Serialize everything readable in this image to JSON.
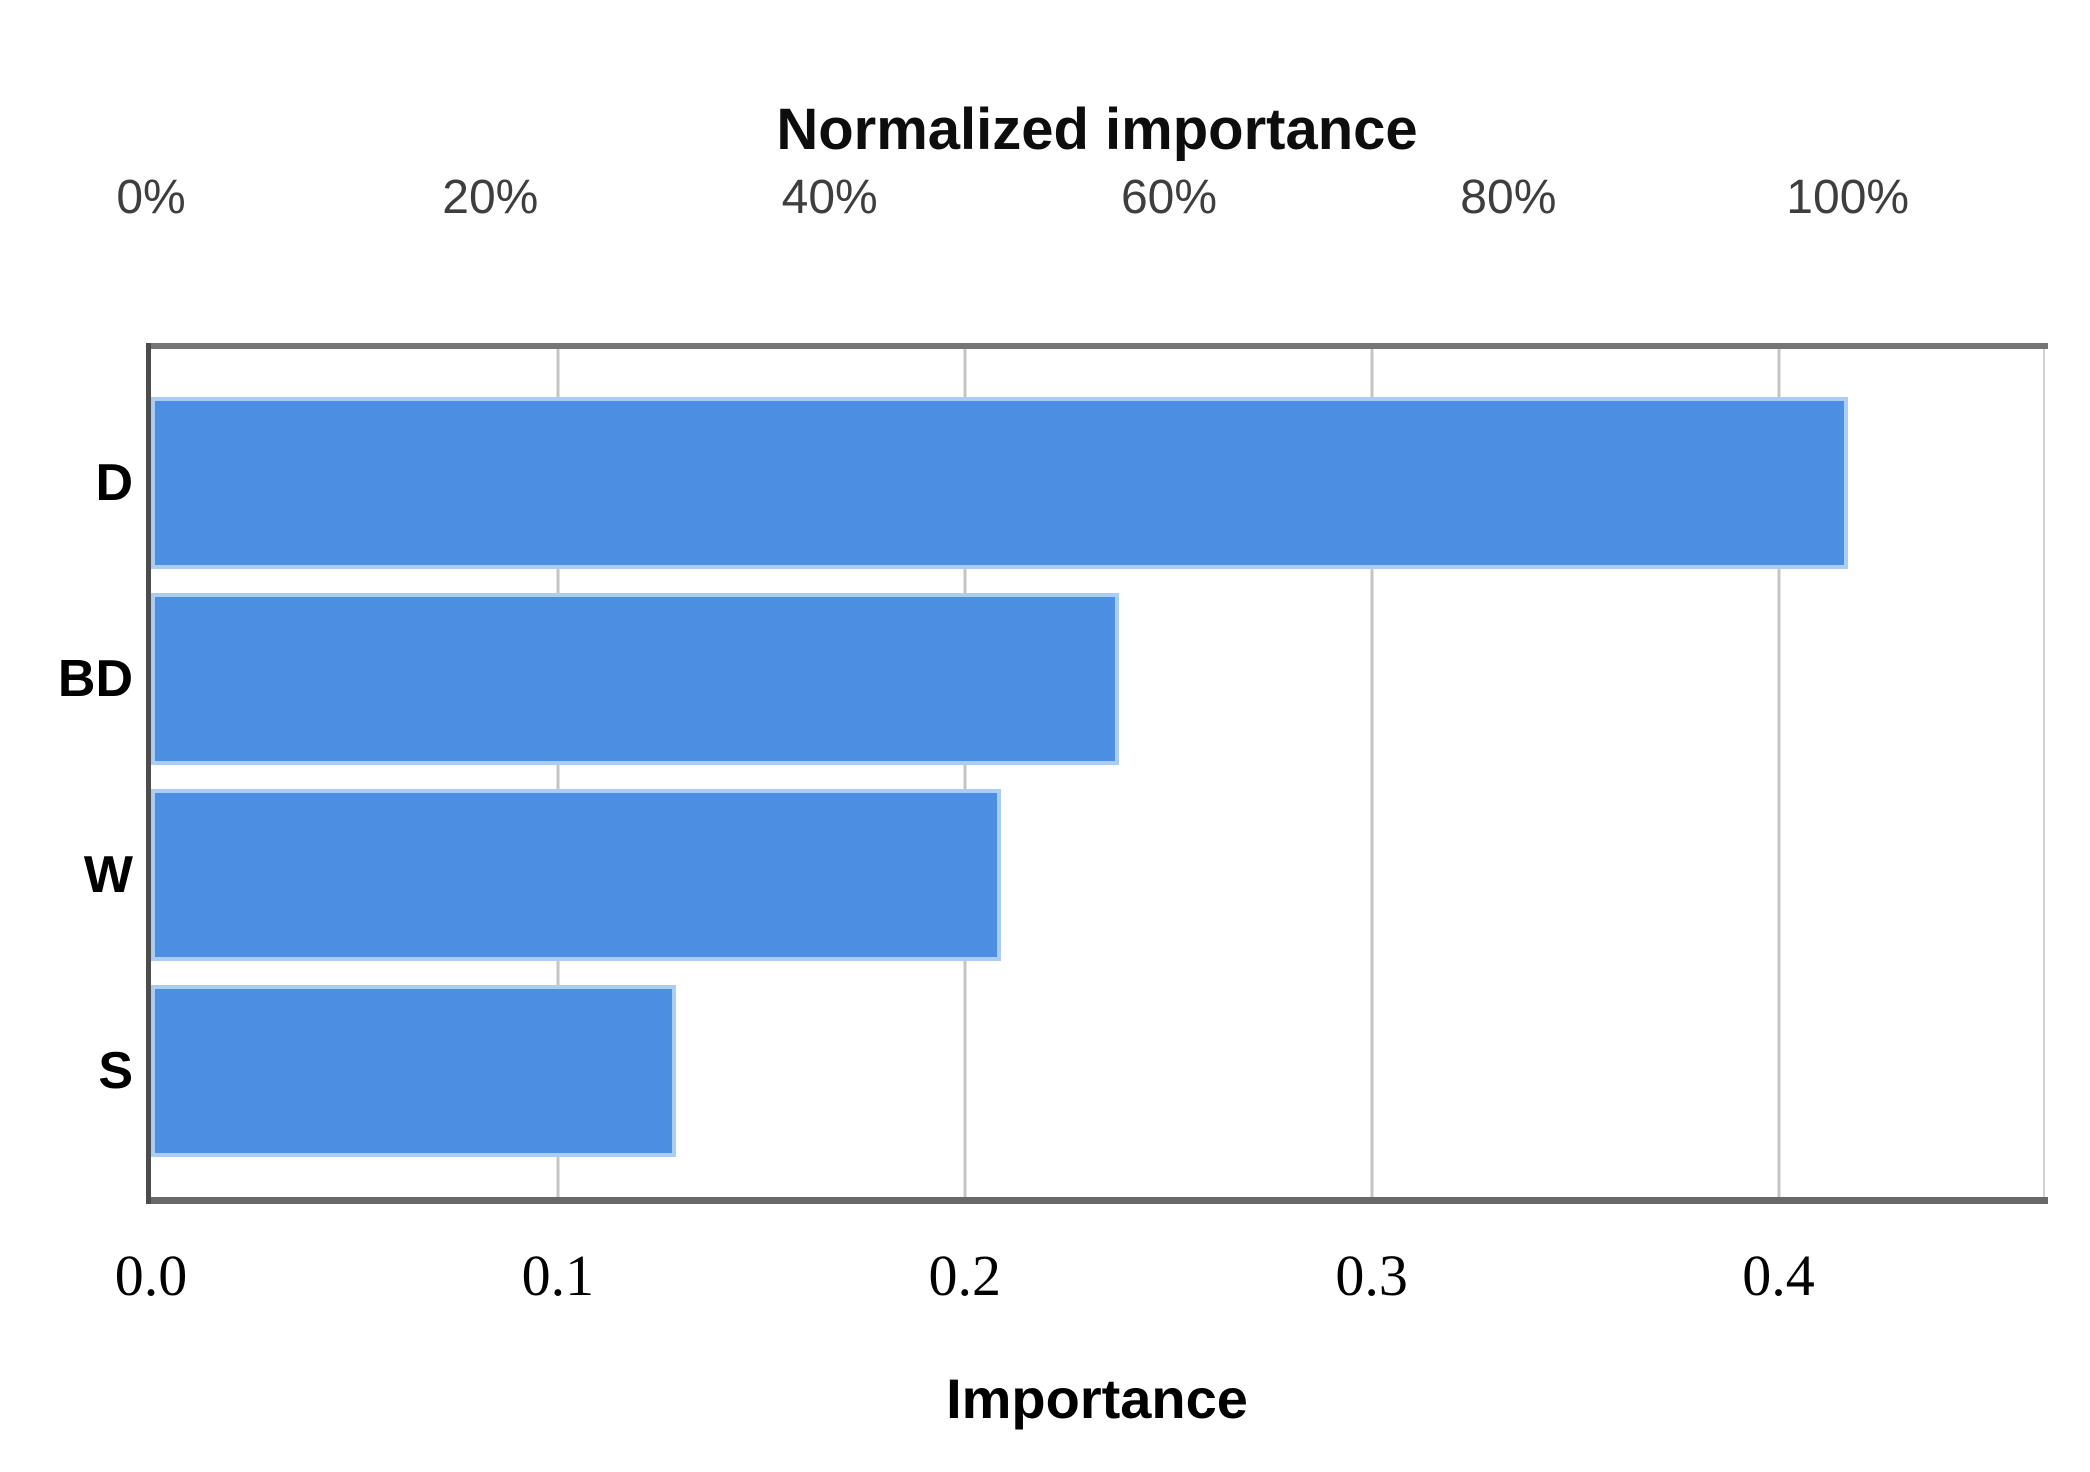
{
  "chart_data": {
    "type": "bar",
    "orientation": "horizontal",
    "title": "Normalized importance",
    "xlabel": "Importance",
    "categories": [
      "D",
      "BD",
      "W",
      "S"
    ],
    "values": [
      0.417,
      0.238,
      0.209,
      0.129
    ],
    "normalized_percent": [
      100,
      57,
      50,
      31
    ],
    "top_axis": {
      "title": "Normalized importance",
      "ticks": [
        "0%",
        "20%",
        "40%",
        "60%",
        "80%",
        "100%"
      ],
      "tick_values": [
        0,
        20,
        40,
        60,
        80,
        100
      ],
      "note": "100% corresponds to the maximum importance value (bar D)"
    },
    "bottom_axis": {
      "title": "Importance",
      "ticks": [
        "0.0",
        "0.1",
        "0.2",
        "0.3",
        "0.4"
      ],
      "tick_values": [
        0.0,
        0.1,
        0.2,
        0.3,
        0.4
      ]
    },
    "xlim": [
      0,
      0.465
    ],
    "grid": true,
    "legend": "none",
    "bar_color": "#4c8fe2",
    "bar_border_color": "#abccf3",
    "gridline_color": "#c5c5c5",
    "axis_line_color": "#696969"
  }
}
